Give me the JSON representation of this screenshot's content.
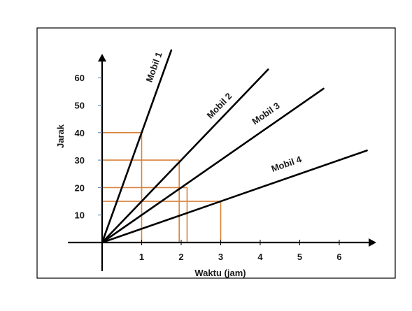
{
  "chart_data": {
    "type": "line",
    "xlabel": "Waktu (jam)",
    "ylabel": "Jarak",
    "x_ticks": [
      1,
      2,
      3,
      4,
      5,
      6
    ],
    "y_ticks": [
      10,
      20,
      30,
      40,
      50,
      60
    ],
    "xlim": [
      0,
      7
    ],
    "ylim": [
      0,
      65
    ],
    "grid": false,
    "colors": {
      "series": "#000000",
      "guides": "#d9823b",
      "axis": "#000000"
    },
    "series": [
      {
        "name": "Mobil 1",
        "points": [
          [
            0,
            0
          ],
          [
            1,
            40
          ],
          [
            1.75,
            70
          ]
        ]
      },
      {
        "name": "Mobil 2",
        "points": [
          [
            0,
            0
          ],
          [
            2,
            30
          ],
          [
            4.2,
            63
          ]
        ]
      },
      {
        "name": "Mobil 3",
        "points": [
          [
            0,
            0
          ],
          [
            2,
            20
          ],
          [
            5.6,
            56
          ]
        ]
      },
      {
        "name": "Mobil 4",
        "points": [
          [
            0,
            0
          ],
          [
            3,
            15
          ],
          [
            6.7,
            33.5
          ]
        ]
      }
    ],
    "guides": [
      {
        "x": 1,
        "y": 40
      },
      {
        "x": 1.95,
        "y": 30
      },
      {
        "x": 2.15,
        "y": 20
      },
      {
        "x": 3,
        "y": 15
      }
    ]
  }
}
